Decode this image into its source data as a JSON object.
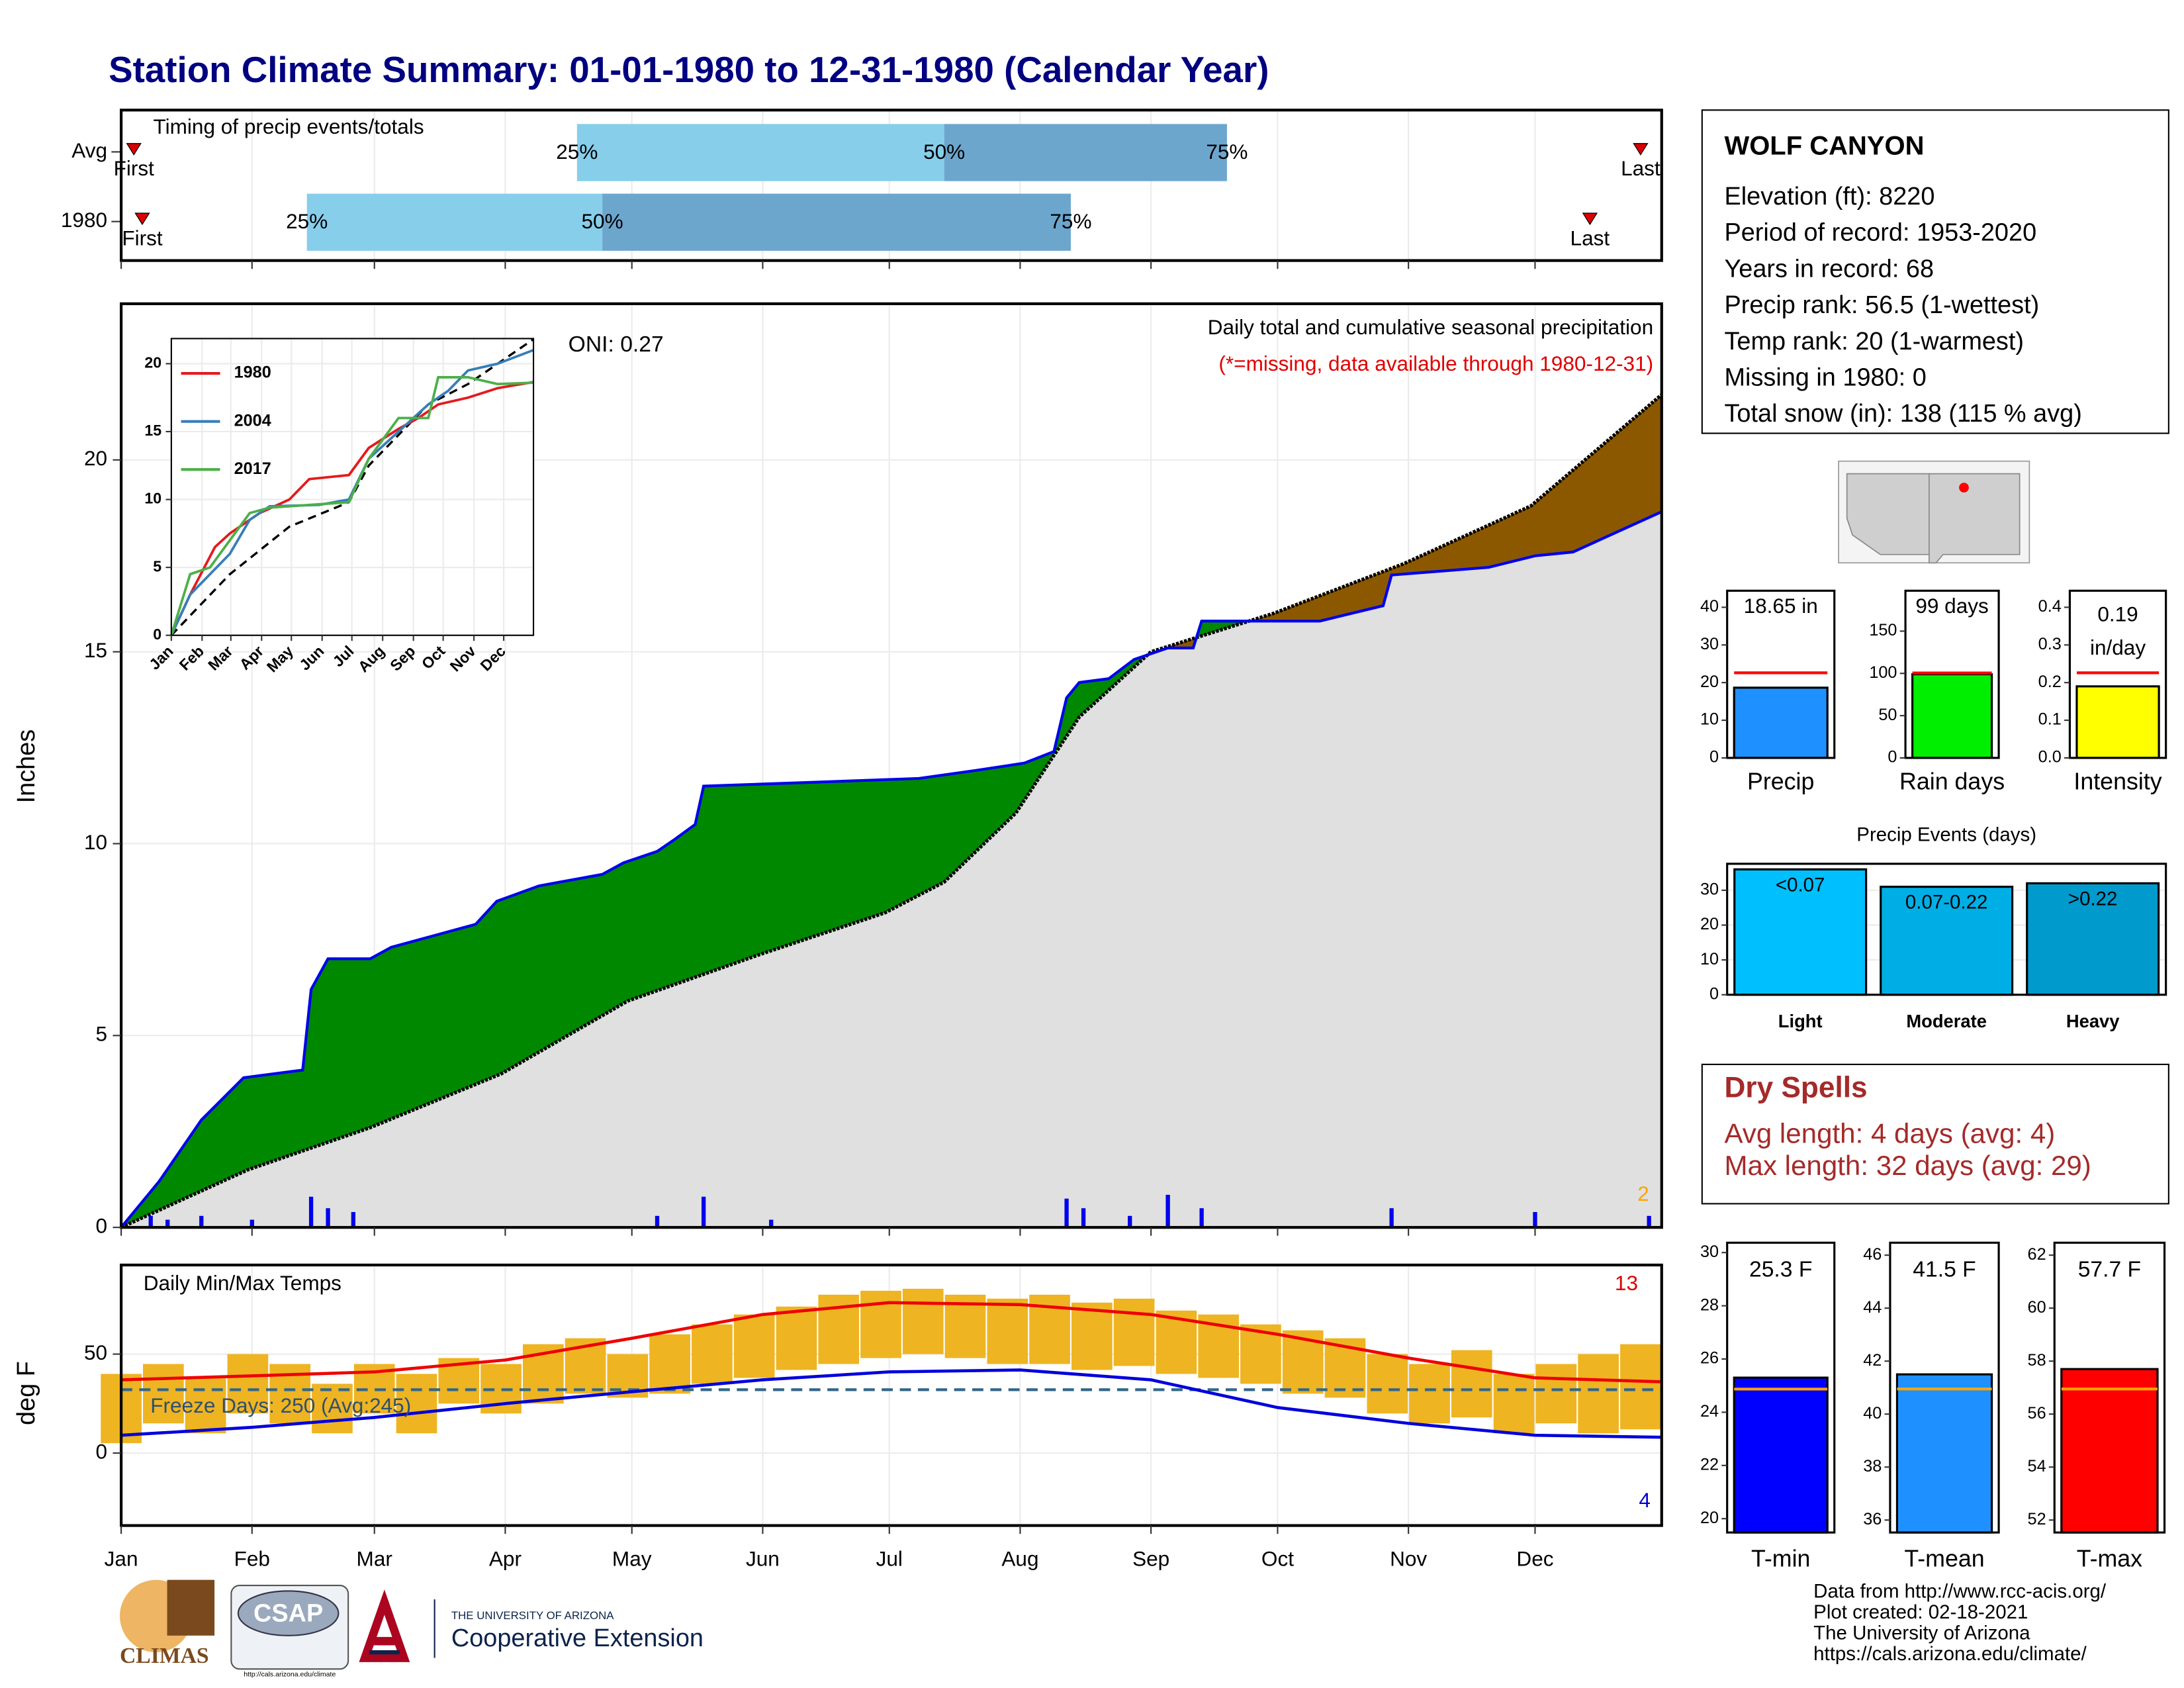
{
  "title": "Station Climate Summary: 01-01-1980 to 12-31-1980 (Calendar Year)",
  "chart_data": [
    {
      "type": "timing",
      "title": "Timing of precip events/totals",
      "xlim": [
        1,
        366
      ],
      "rows": [
        {
          "name": "Avg",
          "first": 4,
          "q25": 109,
          "q50": 196,
          "q75": 263,
          "last": 361
        },
        {
          "name": "1980",
          "first": 6,
          "q25": 45,
          "q50": 115,
          "q75": 226,
          "last": 349
        }
      ],
      "quantile_labels": [
        "25%",
        "50%",
        "75%"
      ],
      "first_label": "First",
      "last_label": "Last",
      "colors": [
        "#87ceeb",
        "#6ca6cd"
      ],
      "marker_color": "#dd0000"
    },
    {
      "type": "cumulative",
      "y_label": "Inches",
      "annotation": "Daily total and cumulative seasonal precipitation",
      "note": "(*=missing, data available through 1980-12-31)",
      "oni": "ONI: 0.27",
      "count": 2,
      "xlim": [
        1,
        366
      ],
      "ylim": [
        0,
        24.07
      ],
      "yticks": [
        0,
        5,
        10,
        15,
        20
      ],
      "observed": {
        "color": "#0000ee",
        "x": [
          1,
          10,
          20,
          30,
          44,
          46,
          50,
          60,
          65,
          75,
          85,
          90,
          100,
          105,
          115,
          120,
          128,
          132,
          137,
          139,
          165,
          190,
          203,
          215,
          222,
          225,
          228,
          235,
          241,
          249,
          255,
          257,
          285,
          300,
          302,
          325,
          336,
          345,
          366
        ],
        "values": [
          0,
          1.2,
          2.8,
          3.9,
          4.1,
          6.2,
          7.0,
          7.0,
          7.3,
          7.6,
          7.9,
          8.5,
          8.9,
          9.0,
          9.2,
          9.5,
          9.8,
          10.1,
          10.5,
          11.5,
          11.6,
          11.7,
          11.9,
          12.1,
          12.4,
          13.8,
          14.2,
          14.3,
          14.8,
          15.1,
          15.1,
          15.8,
          15.8,
          16.2,
          17.0,
          17.2,
          17.5,
          17.6,
          18.65
        ]
      },
      "average": {
        "color": "#000000",
        "x": [
          1,
          31,
          60,
          91,
          121,
          152,
          182,
          196,
          213,
          228,
          245,
          274,
          305,
          335,
          366
        ],
        "values": [
          0,
          1.5,
          2.6,
          4.0,
          5.9,
          7.1,
          8.2,
          9.0,
          10.8,
          13.3,
          15.0,
          16.0,
          17.3,
          18.8,
          21.7
        ]
      },
      "above_color": "#008800",
      "below_color": "#8b5800",
      "base_color": "#e0e0e0",
      "daily": {
        "color": "#0000ee",
        "x": [
          8,
          12,
          20,
          32,
          46,
          50,
          56,
          128,
          139,
          155,
          225,
          229,
          240,
          249,
          257,
          302,
          336,
          363
        ],
        "values": [
          0.3,
          0.2,
          0.3,
          0.2,
          0.8,
          0.5,
          0.4,
          0.3,
          0.8,
          0.2,
          0.75,
          0.5,
          0.3,
          0.85,
          0.5,
          0.5,
          0.4,
          0.3
        ]
      }
    },
    {
      "type": "line",
      "xlim": [
        1,
        366
      ],
      "ylim": [
        0,
        21.85
      ],
      "yticks": [
        0,
        5,
        10,
        15,
        20
      ],
      "xticks": [
        {
          "value": 1,
          "label": "Jan"
        },
        {
          "value": 32,
          "label": "Feb"
        },
        {
          "value": 61,
          "label": "Mar"
        },
        {
          "value": 92,
          "label": "Apr"
        },
        {
          "value": 122,
          "label": "May"
        },
        {
          "value": 153,
          "label": "Jun"
        },
        {
          "value": 183,
          "label": "Jul"
        },
        {
          "value": 214,
          "label": "Aug"
        },
        {
          "value": 245,
          "label": "Sep"
        },
        {
          "value": 275,
          "label": "Oct"
        },
        {
          "value": 306,
          "label": "Nov"
        },
        {
          "value": 336,
          "label": "Dec"
        }
      ],
      "series": [
        {
          "name": "1980",
          "color": "#e41a1c",
          "x": [
            1,
            20,
            45,
            60,
            90,
            120,
            140,
            180,
            200,
            230,
            250,
            270,
            300,
            330,
            366
          ],
          "values": [
            0,
            3,
            6.5,
            7.5,
            9,
            10,
            11.5,
            11.8,
            13.8,
            15.2,
            16,
            17,
            17.5,
            18.2,
            18.65
          ]
        },
        {
          "name": "2004",
          "color": "#377eb8",
          "x": [
            1,
            20,
            40,
            60,
            80,
            100,
            150,
            180,
            200,
            230,
            260,
            280,
            300,
            330,
            366
          ],
          "values": [
            0,
            3,
            4.5,
            6,
            8.5,
            9.5,
            9.6,
            10,
            13,
            15,
            17,
            18,
            19.5,
            20,
            21
          ]
        },
        {
          "name": "2017",
          "color": "#4daf4a",
          "x": [
            1,
            20,
            40,
            60,
            80,
            100,
            180,
            200,
            230,
            260,
            270,
            300,
            330,
            366
          ],
          "values": [
            0,
            4.5,
            5,
            7,
            9,
            9.4,
            9.8,
            13,
            16,
            16,
            19,
            19,
            18.5,
            18.6
          ]
        }
      ],
      "average": {
        "color": "#000000",
        "x": [
          1,
          60,
          120,
          180,
          200,
          260,
          300,
          366
        ],
        "values": [
          0,
          4.5,
          8,
          9.8,
          12.5,
          17,
          18.5,
          21.8
        ]
      }
    },
    {
      "type": "temps",
      "title": "Daily Min/Max Temps",
      "y_label": "deg F",
      "freeze_label": "Freeze Days: 250 (Avg:245)",
      "freeze_line": 32,
      "record_high_count": 13,
      "record_low_count": 4,
      "xlim": [
        1,
        366
      ],
      "ylim": [
        -36.6,
        95
      ],
      "yticks": [
        0,
        50
      ],
      "xticks": [
        {
          "value": 1,
          "label": "Jan"
        },
        {
          "value": 32,
          "label": "Feb"
        },
        {
          "value": 61,
          "label": "Mar"
        },
        {
          "value": 92,
          "label": "Apr"
        },
        {
          "value": 122,
          "label": "May"
        },
        {
          "value": 153,
          "label": "Jun"
        },
        {
          "value": 183,
          "label": "Jul"
        },
        {
          "value": 214,
          "label": "Aug"
        },
        {
          "value": 245,
          "label": "Sep"
        },
        {
          "value": 275,
          "label": "Oct"
        },
        {
          "value": 306,
          "label": "Nov"
        },
        {
          "value": 336,
          "label": "Dec"
        }
      ],
      "daily": {
        "color": "#eeb422",
        "x": [
          1,
          11,
          21,
          31,
          41,
          51,
          61,
          71,
          81,
          91,
          101,
          111,
          121,
          131,
          141,
          151,
          161,
          171,
          181,
          191,
          201,
          211,
          221,
          231,
          241,
          251,
          261,
          271,
          281,
          291,
          301,
          311,
          321,
          331,
          341,
          351,
          361
        ],
        "low": [
          5,
          15,
          10,
          20,
          15,
          10,
          20,
          10,
          25,
          20,
          25,
          30,
          28,
          30,
          35,
          38,
          42,
          45,
          48,
          50,
          48,
          45,
          45,
          42,
          44,
          40,
          38,
          35,
          30,
          28,
          20,
          15,
          18,
          10,
          15,
          10,
          12
        ],
        "high": [
          40,
          45,
          38,
          50,
          45,
          35,
          45,
          40,
          48,
          45,
          55,
          58,
          50,
          60,
          65,
          70,
          74,
          80,
          82,
          83,
          80,
          78,
          80,
          76,
          78,
          72,
          70,
          65,
          62,
          58,
          50,
          45,
          52,
          40,
          45,
          50,
          55
        ]
      },
      "avg_max": {
        "color": "#ee0000",
        "x": [
          1,
          32,
          61,
          92,
          122,
          153,
          183,
          214,
          245,
          275,
          306,
          336,
          366
        ],
        "values": [
          37,
          39,
          41,
          47,
          58,
          70,
          76,
          75,
          70,
          60,
          48,
          38,
          36
        ]
      },
      "avg_min": {
        "color": "#0000dd",
        "x": [
          1,
          32,
          61,
          92,
          122,
          153,
          183,
          214,
          245,
          275,
          306,
          336,
          366
        ],
        "values": [
          9,
          13,
          18,
          25,
          31,
          37,
          41,
          42,
          37,
          23,
          15,
          9,
          8
        ]
      },
      "freeze_color": "#336688"
    },
    {
      "type": "single_bar",
      "name": "Precip",
      "value": 18.65,
      "value_label": "18.65 in",
      "average": 22.6,
      "ylim": [
        0,
        44.4
      ],
      "yticks": [
        0,
        10,
        20,
        30,
        40
      ],
      "color": "#1e90ff",
      "avg_color": "#ff0000"
    },
    {
      "type": "single_bar",
      "name": "Rain days",
      "value": 99,
      "value_label": "99 days",
      "average": 100.5,
      "ylim": [
        0,
        197.8
      ],
      "yticks": [
        0,
        50,
        100,
        150
      ],
      "color": "#00ee00",
      "avg_color": "#ff0000"
    },
    {
      "type": "single_bar",
      "name": "Intensity",
      "value": 0.19,
      "value_label": "0.19",
      "unit_label": "in/day",
      "average": 0.226,
      "ylim": [
        0,
        0.444
      ],
      "yticks": [
        {
          "value": 0,
          "label": "0.0"
        },
        0.1,
        0.2,
        0.3,
        0.4
      ],
      "color": "#ffff00",
      "avg_color": "#ff0000"
    },
    {
      "type": "bar",
      "title": "Precip Events (days)",
      "categories": [
        "Light",
        "Moderate",
        "Heavy"
      ],
      "bin_labels": [
        "<0.07",
        "0.07-0.22",
        ">0.22"
      ],
      "values": [
        36,
        31,
        32
      ],
      "colors": [
        "#00bfff",
        "#00aee6",
        "#009acd"
      ],
      "ylim": [
        0,
        37.6
      ],
      "yticks": [
        0,
        10,
        20,
        30
      ]
    },
    {
      "type": "single_bar",
      "name": "T-min",
      "value": 25.3,
      "value_label": "25.3 F",
      "average": 24.87,
      "ylim": [
        19.48,
        30.37
      ],
      "yticks": [
        20,
        22,
        24,
        26,
        28,
        30
      ],
      "color": "#0000ff",
      "avg_color": "#ffa500"
    },
    {
      "type": "single_bar",
      "name": "T-mean",
      "value": 41.5,
      "value_label": "41.5 F",
      "average": 40.95,
      "ylim": [
        35.53,
        46.47
      ],
      "yticks": [
        36,
        38,
        40,
        42,
        44,
        46
      ],
      "color": "#1e90ff",
      "avg_color": "#ffa500"
    },
    {
      "type": "single_bar",
      "name": "T-max",
      "value": 57.7,
      "value_label": "57.7 F",
      "average": 56.95,
      "ylim": [
        51.53,
        62.47
      ],
      "yticks": [
        52,
        54,
        56,
        58,
        60,
        62
      ],
      "color": "#ff0000",
      "avg_color": "#ffa500"
    }
  ],
  "station": {
    "name": "WOLF CANYON",
    "lines": [
      "Elevation (ft): 8220",
      "Period of record: 1953-2020",
      "Years in record: 68",
      "Precip rank: 56.5 (1-wettest)",
      "Temp rank: 20 (1-warmest)",
      "Missing in 1980: 0",
      "Total snow (in): 138 (115 % avg)"
    ]
  },
  "dry_spells": {
    "title": "Dry Spells",
    "lines": [
      "Avg length: 4 days (avg: 4)",
      "Max length: 32 days (avg: 29)"
    ]
  },
  "footer": {
    "credits": [
      "Data from http://www.rcc-acis.org/",
      "Plot created: 02-18-2021",
      "The University of Arizona",
      "https://cals.arizona.edu/climate/"
    ],
    "logos": [
      "CLIMAS",
      "CSAP",
      "http://cals.arizona.edu/climate",
      "THE UNIVERSITY OF ARIZONA",
      "Cooperative Extension"
    ]
  }
}
